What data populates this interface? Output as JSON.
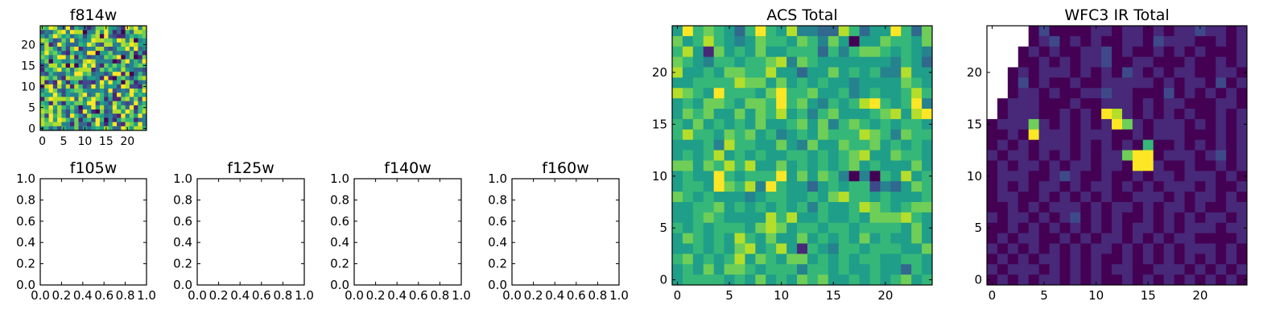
{
  "chart_data": [
    {
      "id": "f814w",
      "type": "heatmap",
      "title": "f814w",
      "grid_size": 25,
      "colormap": "viridis",
      "extent": [
        -0.5,
        24.5
      ],
      "xticks": [
        0,
        5,
        10,
        15,
        20
      ],
      "yticks": [
        0,
        5,
        10,
        15,
        20
      ],
      "values_rows_top_to_bottom": [
        "hgjiedjcgkdbdhhifkdbjhjei",
        "cedgijejiiaeeifjfbdagdiih",
        "fdgjhfgdfgcfhiajdcbbegfgh",
        "ihfcdhejdfefjiihhfjieiaef",
        "eibdjgdddgfjhdciieeihjiff",
        "eihfcgchjbdeeiidcdggjejde",
        "gjghfcbgefdjjaffhdeddhbfb",
        "hgdgjjeibgecdedhghjaehabh",
        "fhaggeegedijieeeeabhjegej",
        "ceiifiaiafjgjdbhfhfhdeghg",
        "bgfhjfhdhiiibdhfhfeifeddc",
        "dcgeddgejjghdeecejjbiadgd",
        "ihfhdbihhhdffebjbaghecfhi",
        "ibdbjfbfgbccbejfjfgaigbde",
        "bijcidibigcdjeieffcjiccbh",
        "egjhdcfghhfeeefdjcdedjhfj",
        "gffjgcfeehjdeigdgbjegjfgf",
        "bhjiiihjdiegjhgbfbbhiehcj",
        "gfbiebgfhhfjjcfecigdcdjeg",
        "hgjfigeheaeejfidejfhdjbgh",
        "ihieiecgdbjfbahcdiifjhcgi",
        "hcjgifcjgeciggfdecbjehfje",
        "igjfjigdhbfgcjgaebfhggbde",
        "ihhiieebhddbgjebfjcbihfje",
        "fgdfcgeehcfdfgfigddjhfiig"
      ]
    },
    {
      "id": "f105w",
      "type": "heatmap",
      "title": "f105w",
      "empty": true,
      "xticks": [
        "0.0",
        "0.2",
        "0.4",
        "0.6",
        "0.8",
        "1.0"
      ],
      "yticks": [
        "0.0",
        "0.2",
        "0.4",
        "0.6",
        "0.8",
        "1.0"
      ]
    },
    {
      "id": "f125w",
      "type": "heatmap",
      "title": "f125w",
      "empty": true,
      "xticks": [
        "0.0",
        "0.2",
        "0.4",
        "0.6",
        "0.8",
        "1.0"
      ],
      "yticks": [
        "0.0",
        "0.2",
        "0.4",
        "0.6",
        "0.8",
        "1.0"
      ]
    },
    {
      "id": "f140w",
      "type": "heatmap",
      "title": "f140w",
      "empty": true,
      "xticks": [
        "0.0",
        "0.2",
        "0.4",
        "0.6",
        "0.8",
        "1.0"
      ],
      "yticks": [
        "0.0",
        "0.2",
        "0.4",
        "0.6",
        "0.8",
        "1.0"
      ]
    },
    {
      "id": "f160w",
      "type": "heatmap",
      "title": "f160w",
      "empty": true,
      "xticks": [
        "0.0",
        "0.2",
        "0.4",
        "0.6",
        "0.8",
        "1.0"
      ],
      "yticks": [
        "0.0",
        "0.2",
        "0.4",
        "0.6",
        "0.8",
        "1.0"
      ]
    },
    {
      "id": "acs_total",
      "type": "heatmap",
      "title": "ACS Total",
      "grid_size": 25,
      "colormap": "viridis",
      "extent": [
        -0.5,
        24.5
      ],
      "xticks": [
        0,
        5,
        10,
        15,
        20
      ],
      "yticks": [
        0,
        5,
        10,
        15,
        20
      ],
      "values_rows_top_to_bottom": [
        "fjghgfdgjgfieeddigdffjgdh",
        "hfgigfefhggfhgehfaffhggfh",
        "gifbhfgfhffgggdgeghhgfgfe",
        "hgfeggfgghiehgfffffffegfd",
        "iffgfhhggiffdffhfgfgeeiff",
        "ffggggihhfhfgfgffeffffhgf",
        "ihgfjgggfhjgghffgefgffgig",
        "fgfhhgfhhgjghfegfgijgfgje",
        "fhghffhfhgifgeghfffghifij",
        "gfhfgfgfhffghfheghgfgfggf",
        "giggfhghfgefgfhgggihgehgg",
        "fffgeiggffhfehffhgghfgfgf",
        "fgfgifgfgffggfgfghiffhggf",
        "hhfhgigiffhfgfgfghfgfffhf",
        "fgffjgfgggjfhfhgeaeagfifg",
        "fggfjhgiejgffdfgfggcedfhg",
        "hgfgfffefggffgfhiggfgfffg",
        "ffgghfgfgfgfgegffgihgfghh",
        "ffghgffffigiffgffgfhhhigf",
        "gfgfgggfhihfggfggfggggfhf",
        "fhgfgfigfhffhfgfgfhfgffhf",
        "ffgfgfhifgifbgfeggfgggffh",
        "ghfgfgifhgfhhfgfgfggffggf",
        "fgfhfhhgfgggeggfgffgffdgf",
        "fggggfgfhfgfhghffgfgfghfg"
      ]
    },
    {
      "id": "wfc3_ir_total",
      "type": "heatmap",
      "title": "WFC3 IR Total",
      "grid_size": 25,
      "colormap": "viridis",
      "extent": [
        -0.5,
        24.5
      ],
      "xticks": [
        0,
        5,
        10,
        15,
        20
      ],
      "yticks": [
        0,
        5,
        10,
        15,
        20
      ],
      "values_rows_top_to_bottom": [
        "....acaaaabbabbababbcbbab",
        "....abcababaabbacbbbaabab",
        "...ababaabbcabaabababaaab",
        "...aabababbcaabbaaabaabab",
        "..ababbbababacbababbaabba",
        "..acabaabaabbbbbababbacab",
        "..abbabaabbcbbaaacabababa",
        ".abbbaaabaabbbababbaaabba",
        ".abbbaababajibabababaabab",
        "abbbhbabababjhbabbbababab",
        "aabajbbbabbbaababbbaaabab",
        "abababbbabababagaabababab",
        "babbababababbhjjabbbabcab",
        "ababbababbabbajjbaabaabab",
        "abbbaabcbaabaababbabbbaba",
        "abababbababbabababbbabaab",
        "abbaababababaabbbababbaba",
        "aabababbbababbababbabaabb",
        "babbababcababaababababbab",
        "aabababababababbababbbabb",
        "ababbaabababbabababbaaaab",
        "babababababbababababbbaba",
        "abababbababaababababababa",
        "babbbababababbaabbbababab",
        "abababbababaababababababa"
      ]
    }
  ]
}
